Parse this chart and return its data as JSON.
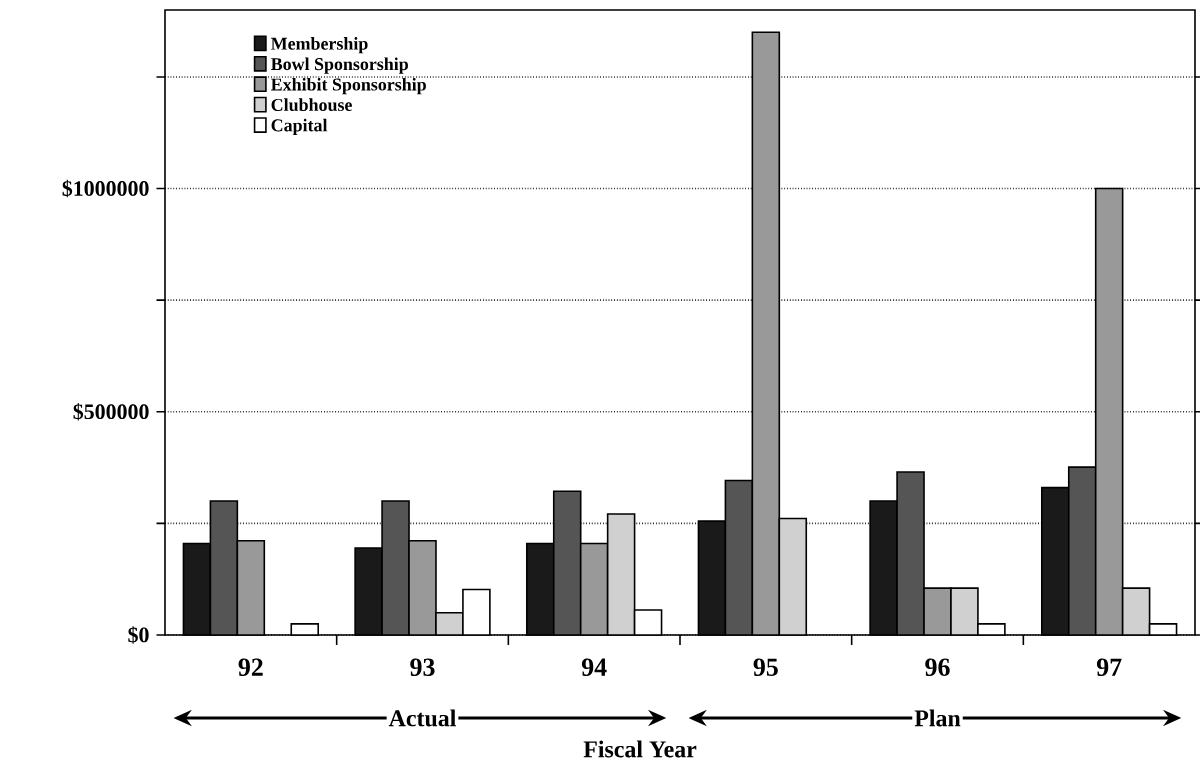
{
  "chart_data": {
    "type": "bar",
    "xlabel": "Fiscal Year",
    "categories": [
      "92",
      "93",
      "94",
      "95",
      "96",
      "97"
    ],
    "series": [
      {
        "name": "Membership",
        "color": "#1a1a1a",
        "values": [
          205000,
          195000,
          205000,
          255000,
          300000,
          330000
        ]
      },
      {
        "name": "Bowl Sponsorship",
        "color": "#555555",
        "values": [
          300000,
          300000,
          322000,
          346000,
          365000,
          376000
        ]
      },
      {
        "name": "Exhibit Sponsorship",
        "color": "#999999",
        "values": [
          211000,
          211000,
          205000,
          1350000,
          105000,
          1000000
        ]
      },
      {
        "name": "Clubhouse",
        "color": "#d0d0d0",
        "values": [
          null,
          50000,
          271000,
          261000,
          105000,
          105000
        ]
      },
      {
        "name": "Capital",
        "color": "#ffffff",
        "values": [
          25000,
          102000,
          56000,
          null,
          25000,
          25000
        ]
      }
    ],
    "ylim": [
      0,
      1400000
    ],
    "yticks": [
      {
        "value": 0,
        "label": "$0"
      },
      {
        "value": 250000,
        "label": null
      },
      {
        "value": 500000,
        "label": "$500000"
      },
      {
        "value": 750000,
        "label": null
      },
      {
        "value": 1000000,
        "label": "$1000000"
      },
      {
        "value": 1250000,
        "label": null
      }
    ],
    "grid": "y",
    "legend": "top left",
    "annotations": [
      "Actual",
      "Plan"
    ]
  }
}
